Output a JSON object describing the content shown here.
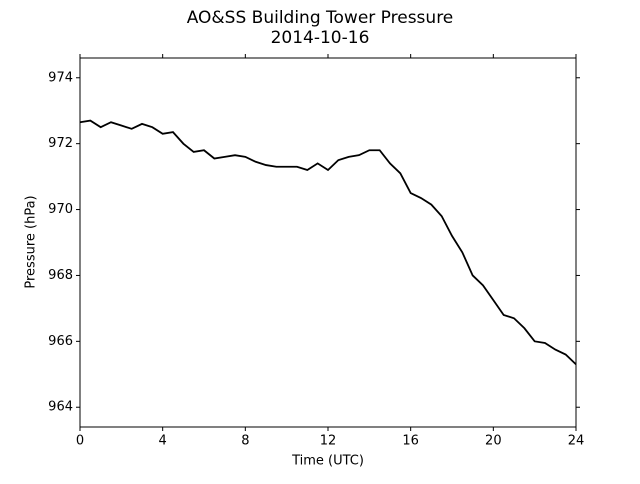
{
  "chart_data": {
    "type": "line",
    "title": "AO&SS Building Tower Pressure",
    "subtitle": "2014-10-16",
    "x_label": "Time (UTC)",
    "y_label": "Pressure (hPa)",
    "x": [
      0,
      0.5,
      1,
      1.5,
      2,
      2.5,
      3,
      3.5,
      4,
      4.5,
      5,
      5.5,
      6,
      6.5,
      7,
      7.5,
      8,
      8.5,
      9,
      9.5,
      10,
      10.5,
      11,
      11.5,
      12,
      12.5,
      13,
      13.5,
      14,
      14.5,
      15,
      15.5,
      16,
      16.5,
      17,
      17.5,
      18,
      18.5,
      19,
      19.5,
      20,
      20.5,
      21,
      21.5,
      22,
      22.5,
      23,
      23.5,
      24
    ],
    "series": [
      {
        "color": "#000000",
        "values": [
          972.65,
          972.7,
          972.5,
          972.65,
          972.55,
          972.45,
          972.6,
          972.5,
          972.3,
          972.35,
          972.0,
          971.75,
          971.8,
          971.55,
          971.6,
          971.65,
          971.6,
          971.45,
          971.35,
          971.3,
          971.3,
          971.3,
          971.2,
          971.4,
          971.2,
          971.5,
          971.6,
          971.65,
          971.8,
          971.8,
          971.4,
          971.1,
          970.5,
          970.35,
          970.15,
          969.8,
          969.2,
          968.7,
          968.0,
          967.7,
          967.25,
          966.8,
          966.7,
          966.4,
          966.0,
          965.95,
          965.75,
          965.6,
          965.3
        ]
      }
    ],
    "xlim": [
      0,
      24
    ],
    "xticks": [
      0,
      4,
      8,
      12,
      16,
      20,
      24
    ],
    "ylim": [
      963.4,
      974.6
    ],
    "yticks": [
      964,
      966,
      968,
      970,
      972,
      974
    ]
  }
}
